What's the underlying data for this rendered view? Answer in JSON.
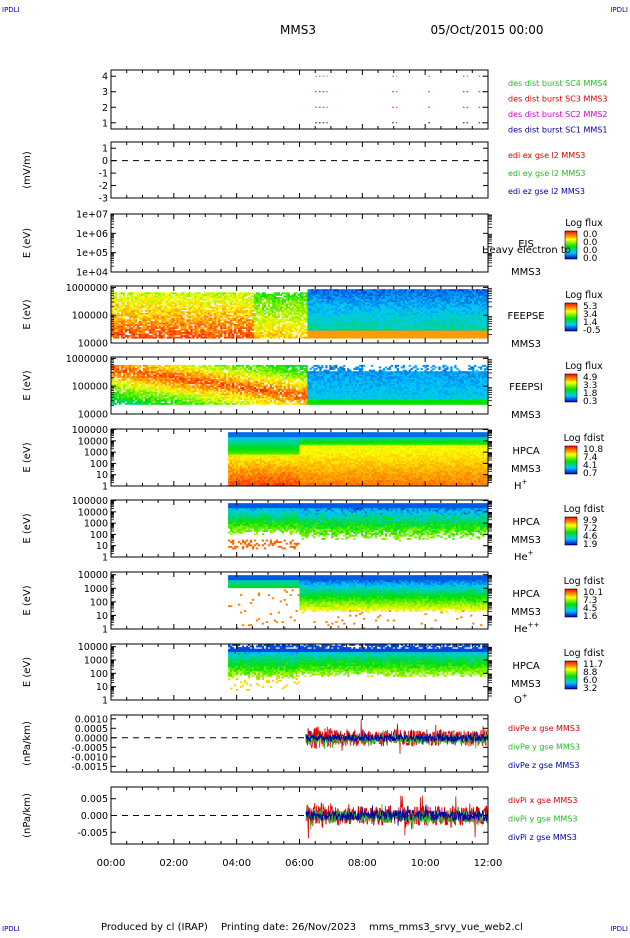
{
  "header": {
    "corner_tl": "IPDLI",
    "corner_tr": "IPDLI",
    "corner_bl": "IPDLI",
    "corner_br": "IPDLI",
    "title": "MMS3",
    "date": "05/Oct/2015 00:00"
  },
  "footer": {
    "produced_by": "Produced by cl (IRAP)",
    "printing_date": "Printing date: 26/Nov/2023",
    "filename": "mms_mms3_srvy_vue_web2.cl"
  },
  "colors": {
    "axis": "#000000",
    "red": "#dd0000",
    "green": "#22bb22",
    "blue": "#0000aa",
    "magenta": "#cc00cc",
    "navy": "#00008b"
  },
  "chart_data": {
    "type": "time-series-stack",
    "x_ticks": [
      "00:00",
      "02:00",
      "04:00",
      "06:00",
      "08:00",
      "10:00",
      "12:00"
    ],
    "x_range_hours": [
      0,
      12
    ],
    "panels": [
      {
        "id": "des",
        "type": "line",
        "ylabel": "",
        "y_ticks": [
          "4",
          "3",
          "2",
          "1"
        ],
        "y_tick_values": [
          4,
          3,
          2,
          1
        ],
        "ylim": [
          0.6,
          4.4
        ],
        "series": [
          {
            "name": "des dist burst SC1 MMS1",
            "color": "#00008b",
            "level": 1,
            "segments": [
              [
                6.5,
                6.9
              ],
              [
                8.95,
                9.1
              ],
              [
                10.1,
                10.2
              ],
              [
                11.2,
                11.4
              ],
              [
                11.7,
                11.9
              ]
            ]
          },
          {
            "name": "des dist burst SC2 MMS2",
            "color": "#cc00cc",
            "level": 2,
            "segments": [
              [
                6.5,
                6.9
              ],
              [
                8.95,
                9.1
              ],
              [
                10.1,
                10.2
              ],
              [
                11.2,
                11.4
              ],
              [
                11.7,
                11.9
              ]
            ]
          },
          {
            "name": "des dist burst SC3 MMS3",
            "color": "#dd0000",
            "level": 3,
            "segments": [
              [
                6.5,
                6.9
              ],
              [
                8.95,
                9.1
              ],
              [
                10.1,
                10.2
              ],
              [
                11.2,
                11.4
              ],
              [
                11.7,
                11.9
              ]
            ]
          },
          {
            "name": "des dist burst SC4 MMS4",
            "color": "#22bb22",
            "level": 4,
            "segments": [
              [
                6.5,
                6.9
              ],
              [
                8.95,
                9.1
              ],
              [
                10.1,
                10.2
              ],
              [
                11.2,
                11.4
              ],
              [
                11.7,
                11.9
              ]
            ]
          }
        ]
      },
      {
        "id": "edi",
        "type": "line",
        "ylabel": "(mV/m)",
        "y_ticks": [
          "1",
          "0",
          "-1",
          "-2",
          "-3"
        ],
        "y_tick_values": [
          1,
          0,
          -1,
          -2,
          -3
        ],
        "ylim": [
          -3,
          1.5
        ],
        "dashed_zero": true,
        "series": [
          {
            "name": "edi ex gse l2 MMS3",
            "color": "#dd0000"
          },
          {
            "name": "edi ey gse l2 MMS3",
            "color": "#22bb22"
          },
          {
            "name": "edi ez gse l2 MMS3",
            "color": "#0000aa"
          }
        ]
      },
      {
        "id": "eis",
        "type": "spectrogram",
        "ylabel": "E (eV)",
        "y_ticks": [
          "1e+07",
          "1e+06",
          "1e+05",
          "1e+04"
        ],
        "y_tick_values": [
          7,
          6,
          5,
          4
        ],
        "ylim": [
          4,
          7
        ],
        "instrument": "EIS",
        "instrument_extra": "Heavy electron to",
        "spacecraft": "MMS3",
        "species": "",
        "colorbar_title": "Log flux",
        "colorbar_ticks": [
          "0.0",
          "0.0",
          "0.0",
          "0.0"
        ],
        "data_start_h": null,
        "data_pattern": "empty"
      },
      {
        "id": "feepse",
        "type": "spectrogram",
        "ylabel": "E (eV)",
        "y_ticks": [
          "1000000",
          "100000",
          "10000"
        ],
        "y_tick_values": [
          6,
          5,
          4
        ],
        "ylim": [
          4,
          6.05
        ],
        "instrument": "FEEPSE",
        "spacecraft": "MMS3",
        "species": "",
        "colorbar_title": "Log flux",
        "colorbar_ticks": [
          "5.3",
          "3.4",
          "1.4",
          "-0.5"
        ],
        "data_start_h": 0,
        "data_pattern": "feeps_e"
      },
      {
        "id": "feepsi",
        "type": "spectrogram",
        "ylabel": "E (eV)",
        "y_ticks": [
          "1000000",
          "100000",
          "10000"
        ],
        "y_tick_values": [
          6,
          5,
          4
        ],
        "ylim": [
          4,
          6.05
        ],
        "instrument": "FEEPSI",
        "spacecraft": "MMS3",
        "species": "",
        "colorbar_title": "Log flux",
        "colorbar_ticks": [
          "4.9",
          "3.3",
          "1.8",
          "0.3"
        ],
        "data_start_h": 0,
        "data_pattern": "feeps_i"
      },
      {
        "id": "hpca_h",
        "type": "spectrogram",
        "ylabel": "E (eV)",
        "y_ticks": [
          "100000",
          "10000",
          "1000",
          "100",
          "10",
          "1"
        ],
        "y_tick_values": [
          5,
          4,
          3,
          2,
          1,
          0
        ],
        "ylim": [
          0,
          5.05
        ],
        "instrument": "HPCA",
        "spacecraft": "MMS3",
        "species": "H",
        "species_sup": "+",
        "colorbar_title": "Log fdist",
        "colorbar_ticks": [
          "10.8",
          "7.4",
          "4.1",
          "0.7"
        ],
        "data_start_h": 3.7,
        "data_pattern": "hpca_h"
      },
      {
        "id": "hpca_he1",
        "type": "spectrogram",
        "ylabel": "E (eV)",
        "y_ticks": [
          "100000",
          "10000",
          "1000",
          "100",
          "10",
          "1"
        ],
        "y_tick_values": [
          5,
          4,
          3,
          2,
          1,
          0
        ],
        "ylim": [
          0,
          5.05
        ],
        "instrument": "HPCA",
        "spacecraft": "MMS3",
        "species": "He",
        "species_sup": "+",
        "colorbar_title": "Log fdist",
        "colorbar_ticks": [
          "9.9",
          "7.2",
          "4.6",
          "1.9"
        ],
        "data_start_h": 3.7,
        "data_pattern": "hpca_he1"
      },
      {
        "id": "hpca_he2",
        "type": "spectrogram",
        "ylabel": "E (eV)",
        "y_ticks": [
          "10000",
          "1000",
          "100",
          "10",
          "1"
        ],
        "y_tick_values": [
          4,
          3,
          2,
          1,
          0
        ],
        "ylim": [
          0,
          4.2
        ],
        "instrument": "HPCA",
        "spacecraft": "MMS3",
        "species": "He",
        "species_sup": "++",
        "colorbar_title": "Log fdist",
        "colorbar_ticks": [
          "10.1",
          "7.3",
          "4.5",
          "1.6"
        ],
        "data_start_h": 3.7,
        "data_pattern": "hpca_he2"
      },
      {
        "id": "hpca_o",
        "type": "spectrogram",
        "ylabel": "E (eV)",
        "y_ticks": [
          "10000",
          "1000",
          "100",
          "10",
          "1"
        ],
        "y_tick_values": [
          4,
          3,
          2,
          1,
          0
        ],
        "ylim": [
          0,
          4.2
        ],
        "instrument": "HPCA",
        "spacecraft": "MMS3",
        "species": "O",
        "species_sup": "+",
        "colorbar_title": "Log fdist",
        "colorbar_ticks": [
          "11.7",
          "8.8",
          "6.0",
          "3.2"
        ],
        "data_start_h": 3.7,
        "data_pattern": "hpca_o"
      },
      {
        "id": "divpe",
        "type": "line",
        "ylabel": "(nPa/km)",
        "y_ticks": [
          "0.0010",
          "0.0005",
          "0.0000",
          "-0.0005",
          "-0.0010",
          "-0.0015"
        ],
        "y_tick_values": [
          0.001,
          0.0005,
          0,
          -0.0005,
          -0.001,
          -0.0015
        ],
        "ylim": [
          -0.0018,
          0.0012
        ],
        "dashed_zero": true,
        "data_start_h": 6.2,
        "series": [
          {
            "name": "divPe x gse MMS3",
            "color": "#dd0000",
            "amplitude": 0.00045
          },
          {
            "name": "divPe y gse MMS3",
            "color": "#22bb22",
            "amplitude": 0.00025
          },
          {
            "name": "divPe z gse MMS3",
            "color": "#0000aa",
            "amplitude": 0.0002
          }
        ]
      },
      {
        "id": "divpi",
        "type": "line",
        "ylabel": "(nPa/km)",
        "y_ticks": [
          "0.005",
          "0.000",
          "-0.005"
        ],
        "y_tick_values": [
          0.005,
          0,
          -0.005
        ],
        "ylim": [
          -0.0085,
          0.0085
        ],
        "dashed_zero": true,
        "data_start_h": 6.2,
        "series": [
          {
            "name": "divPi x gse MMS3",
            "color": "#dd0000",
            "amplitude": 0.003
          },
          {
            "name": "divPi y gse MMS3",
            "color": "#22bb22",
            "amplitude": 0.0018
          },
          {
            "name": "divPi z gse MMS3",
            "color": "#0000aa",
            "amplitude": 0.0016
          }
        ]
      }
    ]
  }
}
